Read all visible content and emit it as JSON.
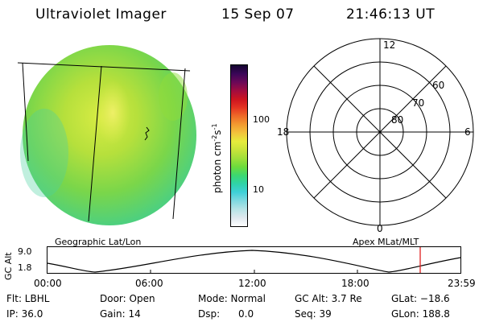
{
  "header": {
    "instrument": "Ultraviolet Imager",
    "date": "15 Sep 07",
    "time": "21:46:13 UT"
  },
  "colorbar": {
    "unit_label": "photon cm",
    "unit_sup1": "-2",
    "unit_mid": "s",
    "unit_sup2": "-1",
    "ticks": [
      {
        "value": 100,
        "label": "100"
      },
      {
        "value": 10,
        "label": "10"
      }
    ],
    "colors": [
      "#ffffff",
      "#dfe8ee",
      "#b6e3e6",
      "#7fd9e0",
      "#3fd0d8",
      "#2fd3a8",
      "#3cd870",
      "#6ddc3c",
      "#a0e03a",
      "#c8e43a",
      "#e6ec3c",
      "#f3c43c",
      "#f39a30",
      "#ee6a28",
      "#e43422",
      "#cc1420",
      "#a00c40",
      "#6a0858",
      "#3a0658",
      "#140630"
    ]
  },
  "map_labels": {
    "left": "Geographic Lat/Lon",
    "right": "Apex MLat/MLT"
  },
  "polar": {
    "mlt_labels": {
      "top": "12",
      "left": "18",
      "right": "6",
      "bottom": "0"
    },
    "lat_labels": [
      "80",
      "70",
      "60"
    ]
  },
  "timeline": {
    "ylabel": "GC Alt",
    "yticks": [
      "9.0",
      "1.8"
    ],
    "xticks": [
      "00:00",
      "06:00",
      "12:00",
      "18:00",
      "23:59"
    ],
    "marker_color": "#e02020"
  },
  "info": {
    "filter": "Flt: LBHL",
    "ip": "IP: 36.0",
    "door": "Door: Open",
    "gain": "Gain: 14",
    "mode": "Mode: Normal",
    "dsp_label": "Dsp:",
    "dsp_value": "0.0",
    "gc_alt": "GC Alt: 3.7 Re",
    "seq": "Seq: 39",
    "glat": "GLat: −18.6",
    "glon": "GLon: 188.8"
  }
}
